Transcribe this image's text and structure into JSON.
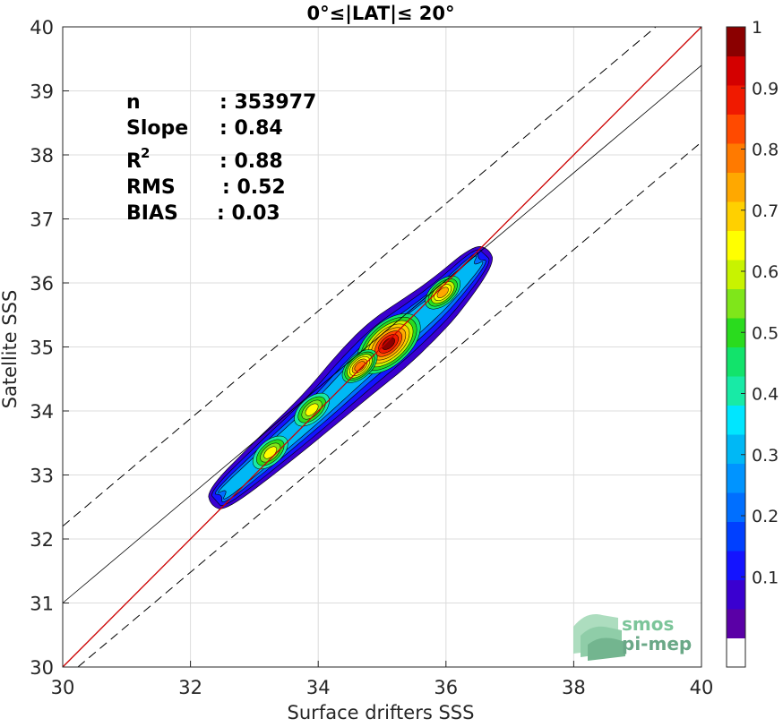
{
  "chart_data": {
    "type": "contour-density-scatter",
    "title": "0°≤|LAT|≤ 20°",
    "xlabel": "Surface drifters SSS",
    "ylabel": "Satellite SSS",
    "xlim": [
      30,
      40
    ],
    "ylim": [
      30,
      40
    ],
    "x_ticks": [
      "30",
      "32",
      "34",
      "36",
      "38",
      "40"
    ],
    "y_ticks": [
      "30",
      "31",
      "32",
      "33",
      "34",
      "35",
      "36",
      "37",
      "38",
      "39",
      "40"
    ],
    "grid": true,
    "colorbar": {
      "range": [
        0,
        1
      ],
      "ticks": [
        "0.1",
        "0.2",
        "0.3",
        "0.4",
        "0.5",
        "0.6",
        "0.7",
        "0.8",
        "0.9",
        "1"
      ],
      "levels": 20,
      "colors": [
        "#ffffff",
        "#5a00a6",
        "#3a00d0",
        "#1414ff",
        "#0040ff",
        "#006fff",
        "#0094ff",
        "#00b8f5",
        "#00e6ff",
        "#18eaa6",
        "#12e36b",
        "#2adb1e",
        "#7fe61a",
        "#c8f300",
        "#ffff00",
        "#ffd000",
        "#ffa800",
        "#ff7a00",
        "#ff4a00",
        "#f01a00",
        "#d40000",
        "#8b0000"
      ]
    },
    "stats": {
      "n_label": "n",
      "n_value": ": 353977",
      "slope_label": "Slope",
      "slope_value": ": 0.84",
      "r2_label": "R",
      "r2_sup": "2",
      "r2_value": ": 0.88",
      "rms_label": "RMS",
      "rms_value": ": 0.52",
      "bias_label": "BIAS",
      "bias_value": ": 0.03"
    },
    "lines": {
      "identity": {
        "x": [
          30,
          40
        ],
        "y": [
          30,
          40
        ],
        "color": "#cc0000"
      },
      "fit": {
        "slope": 0.84,
        "intercept": 5.8,
        "color": "#000000"
      },
      "fit_offset": 1.2
    },
    "density_ridge": {
      "x": [
        32.4,
        33.2,
        34.0,
        34.6,
        35.1,
        35.6,
        36.0,
        36.6
      ],
      "y": [
        32.6,
        33.3,
        34.0,
        34.6,
        35.05,
        35.45,
        35.8,
        36.45
      ]
    },
    "density_peaks": [
      {
        "x": 35.1,
        "y": 35.05,
        "value": 1.0
      },
      {
        "x": 34.65,
        "y": 34.7,
        "value": 0.7
      },
      {
        "x": 35.95,
        "y": 35.85,
        "value": 0.58
      },
      {
        "x": 33.25,
        "y": 33.35,
        "value": 0.45
      },
      {
        "x": 33.9,
        "y": 34.02,
        "value": 0.45
      }
    ]
  },
  "logo": {
    "line1": "smos",
    "line2": "pi-mep"
  }
}
